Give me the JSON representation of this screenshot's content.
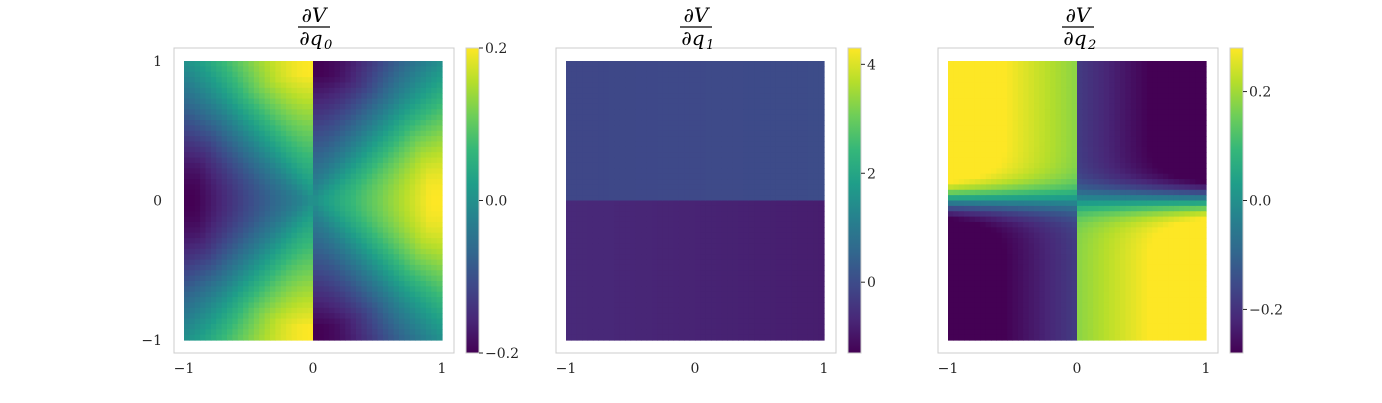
{
  "chart_data": [
    {
      "type": "scatter",
      "title": {
        "numerator": "∂V",
        "denominator": "∂q",
        "subscript": "0"
      },
      "x_range": [
        -1,
        1
      ],
      "y_range": [
        -1,
        1
      ],
      "xticks": [
        -1,
        0,
        1
      ],
      "xtick_labels": [
        "−1",
        "0",
        "1"
      ],
      "yticks": [
        -1,
        0,
        1
      ],
      "ytick_labels": [
        "−1",
        "0",
        "1"
      ],
      "show_yticks": true,
      "grid": false,
      "colorbar": {
        "min": -0.2,
        "max": 0.2,
        "ticks": [
          -0.2,
          0.0,
          0.2
        ],
        "tick_labels": [
          "−0.2",
          "0.0",
          "0.2"
        ]
      },
      "colormap": "viridis",
      "field": "dq0"
    },
    {
      "type": "scatter",
      "title": {
        "numerator": "∂V",
        "denominator": "∂q",
        "subscript": "1"
      },
      "x_range": [
        -1,
        1
      ],
      "y_range": [
        -1,
        1
      ],
      "xticks": [
        -1,
        0,
        1
      ],
      "xtick_labels": [
        "−1",
        "0",
        "1"
      ],
      "yticks": [],
      "ytick_labels": [],
      "show_yticks": false,
      "grid": false,
      "colorbar": {
        "min": -1.3,
        "max": 4.3,
        "ticks": [
          0,
          2,
          4
        ],
        "tick_labels": [
          "0",
          "2",
          "4"
        ]
      },
      "colormap": "viridis",
      "field": "dq1"
    },
    {
      "type": "scatter",
      "title": {
        "numerator": "∂V",
        "denominator": "∂q",
        "subscript": "2"
      },
      "x_range": [
        -1,
        1
      ],
      "y_range": [
        -1,
        1
      ],
      "xticks": [
        -1,
        0,
        1
      ],
      "xtick_labels": [
        "−1",
        "0",
        "1"
      ],
      "yticks": [],
      "ytick_labels": [],
      "show_yticks": false,
      "grid": false,
      "colorbar": {
        "min": -0.28,
        "max": 0.28,
        "ticks": [
          -0.2,
          0.0,
          0.2
        ],
        "tick_labels": [
          "−0.2",
          "0.0",
          "0.2"
        ]
      },
      "colormap": "viridis",
      "field": "dq2"
    }
  ],
  "colors": {
    "viridis": [
      "#440154",
      "#482878",
      "#3e4989",
      "#31688e",
      "#26828e",
      "#1f9e89",
      "#35b779",
      "#6ece58",
      "#b5de2b",
      "#fde725"
    ],
    "frame": "#cccccc",
    "text": "#262626",
    "background": "#ffffff"
  }
}
